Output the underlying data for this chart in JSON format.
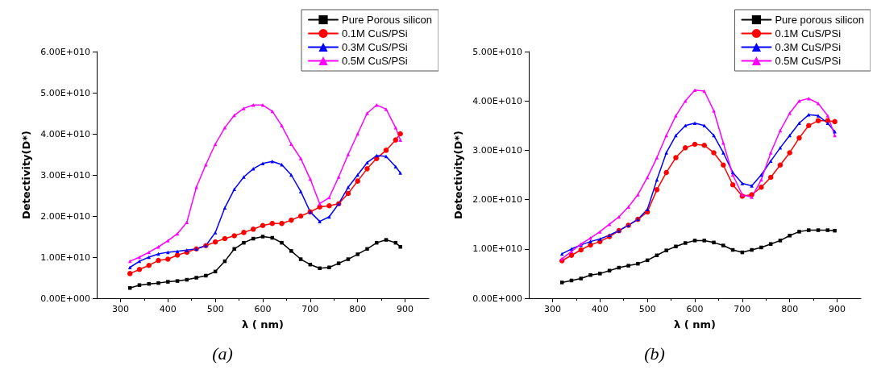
{
  "chart_data": [
    {
      "type": "line",
      "xlabel": "λ ( nm)",
      "ylabel": "Detectivity(D*)",
      "annotations": [
        "(a)"
      ],
      "legend": "top right",
      "grid": false,
      "line_style": "solid",
      "xlim": [
        250,
        950
      ],
      "xticks": [
        300,
        400,
        500,
        600,
        700,
        800,
        900
      ],
      "ylim": [
        0,
        60000000000.0
      ],
      "yticks": [
        {
          "value": 0,
          "label": "0.00E+000"
        },
        {
          "value": 10000000000.0,
          "label": "1.00E+010"
        },
        {
          "value": 20000000000.0,
          "label": "2.00E+010"
        },
        {
          "value": 30000000000.0,
          "label": "3.00E+010"
        },
        {
          "value": 40000000000.0,
          "label": "4.00E+010"
        },
        {
          "value": 50000000000.0,
          "label": "5.00E+010"
        },
        {
          "value": 60000000000.0,
          "label": "6.00E+010"
        }
      ],
      "x": [
        320,
        340,
        360,
        380,
        400,
        420,
        440,
        460,
        480,
        500,
        520,
        540,
        560,
        580,
        600,
        620,
        640,
        660,
        680,
        700,
        720,
        740,
        760,
        780,
        800,
        820,
        840,
        860,
        880,
        890
      ],
      "series": [
        {
          "name": "Pure Porous silicon",
          "color": "#000000",
          "marker": "square",
          "values": [
            2500000000.0,
            3200000000.0,
            3500000000.0,
            3700000000.0,
            4000000000.0,
            4200000000.0,
            4500000000.0,
            5000000000.0,
            5500000000.0,
            6500000000.0,
            9000000000.0,
            12000000000.0,
            13500000000.0,
            14500000000.0,
            15000000000.0,
            14700000000.0,
            13500000000.0,
            11500000000.0,
            9500000000.0,
            8200000000.0,
            7300000000.0,
            7500000000.0,
            8500000000.0,
            9500000000.0,
            10700000000.0,
            12000000000.0,
            13500000000.0,
            14200000000.0,
            13500000000.0,
            12500000000.0
          ]
        },
        {
          "name": "0.1M CuS/PSi",
          "color": "#ff0000",
          "marker": "circle",
          "values": [
            6000000000.0,
            7000000000.0,
            8000000000.0,
            9200000000.0,
            9500000000.0,
            10500000000.0,
            11200000000.0,
            12000000000.0,
            12800000000.0,
            13700000000.0,
            14500000000.0,
            15200000000.0,
            16000000000.0,
            16800000000.0,
            17700000000.0,
            18200000000.0,
            18200000000.0,
            19000000000.0,
            20000000000.0,
            21000000000.0,
            22200000000.0,
            22500000000.0,
            23000000000.0,
            25500000000.0,
            28500000000.0,
            31500000000.0,
            34000000000.0,
            36000000000.0,
            38500000000.0,
            40000000000.0
          ]
        },
        {
          "name": "0.3M CuS/PSi",
          "color": "#0000ff",
          "marker": "triangle",
          "values": [
            7500000000.0,
            9000000000.0,
            10000000000.0,
            10800000000.0,
            11200000000.0,
            11400000000.0,
            11700000000.0,
            12000000000.0,
            12800000000.0,
            16000000000.0,
            22000000000.0,
            26500000000.0,
            29500000000.0,
            31500000000.0,
            32800000000.0,
            33300000000.0,
            32500000000.0,
            30000000000.0,
            26000000000.0,
            21000000000.0,
            18700000000.0,
            19800000000.0,
            23000000000.0,
            27000000000.0,
            30000000000.0,
            33000000000.0,
            34700000000.0,
            34500000000.0,
            32000000000.0,
            30500000000.0
          ]
        },
        {
          "name": "0.5M CuS/PSi",
          "color": "#ff00ff",
          "marker": "triangle",
          "values": [
            9000000000.0,
            10000000000.0,
            11200000000.0,
            12500000000.0,
            14000000000.0,
            15700000000.0,
            18500000000.0,
            27000000000.0,
            32500000000.0,
            37500000000.0,
            41500000000.0,
            44500000000.0,
            46200000000.0,
            47000000000.0,
            47000000000.0,
            45500000000.0,
            42000000000.0,
            37500000000.0,
            34000000000.0,
            29000000000.0,
            23000000000.0,
            24500000000.0,
            29500000000.0,
            35000000000.0,
            40000000000.0,
            45000000000.0,
            47000000000.0,
            46000000000.0,
            41500000000.0,
            38500000000.0
          ]
        }
      ]
    },
    {
      "type": "line",
      "xlabel": "λ ( nm)",
      "ylabel": "Detectivity(D*)",
      "annotations": [
        "(b)"
      ],
      "legend": "top right",
      "grid": false,
      "line_style": "solid",
      "xlim": [
        250,
        950
      ],
      "xticks": [
        300,
        400,
        500,
        600,
        700,
        800,
        900
      ],
      "ylim": [
        0,
        50000000000.0
      ],
      "yticks": [
        {
          "value": 0,
          "label": "0.00E+000"
        },
        {
          "value": 10000000000.0,
          "label": "1.00E+010"
        },
        {
          "value": 20000000000.0,
          "label": "2.00E+010"
        },
        {
          "value": 30000000000.0,
          "label": "3.00E+010"
        },
        {
          "value": 40000000000.0,
          "label": "4.00E+010"
        },
        {
          "value": 50000000000.0,
          "label": "5.00E+010"
        }
      ],
      "x": [
        320,
        340,
        360,
        380,
        400,
        420,
        440,
        460,
        480,
        500,
        520,
        540,
        560,
        580,
        600,
        620,
        640,
        660,
        680,
        700,
        720,
        740,
        760,
        780,
        800,
        820,
        840,
        860,
        880,
        895
      ],
      "series": [
        {
          "name": "Pure porous silicon",
          "color": "#000000",
          "marker": "square",
          "values": [
            3200000000.0,
            3600000000.0,
            4000000000.0,
            4700000000.0,
            5000000000.0,
            5600000000.0,
            6200000000.0,
            6600000000.0,
            7000000000.0,
            7700000000.0,
            8700000000.0,
            9700000000.0,
            10500000000.0,
            11200000000.0,
            11700000000.0,
            11700000000.0,
            11300000000.0,
            10700000000.0,
            9800000000.0,
            9300000000.0,
            9800000000.0,
            10300000000.0,
            11000000000.0,
            11700000000.0,
            12700000000.0,
            13500000000.0,
            13800000000.0,
            13800000000.0,
            13800000000.0,
            13700000000.0
          ]
        },
        {
          "name": "0.1M CuS/PSi",
          "color": "#ff0000",
          "marker": "circle",
          "values": [
            7600000000.0,
            8700000000.0,
            9800000000.0,
            10800000000.0,
            11500000000.0,
            12500000000.0,
            13700000000.0,
            14800000000.0,
            16000000000.0,
            17500000000.0,
            22000000000.0,
            25500000000.0,
            28500000000.0,
            30500000000.0,
            31200000000.0,
            31000000000.0,
            29500000000.0,
            27000000000.0,
            23000000000.0,
            20700000000.0,
            21000000000.0,
            22500000000.0,
            24500000000.0,
            27000000000.0,
            29500000000.0,
            32500000000.0,
            35000000000.0,
            36000000000.0,
            36000000000.0,
            35800000000.0
          ]
        },
        {
          "name": "0.3M CuS/PSi",
          "color": "#0000ff",
          "marker": "triangle",
          "values": [
            9000000000.0,
            10000000000.0,
            10800000000.0,
            11500000000.0,
            12000000000.0,
            12800000000.0,
            13700000000.0,
            14800000000.0,
            16000000000.0,
            18000000000.0,
            24000000000.0,
            29500000000.0,
            33000000000.0,
            35000000000.0,
            35500000000.0,
            35000000000.0,
            33000000000.0,
            29500000000.0,
            25500000000.0,
            23300000000.0,
            22800000000.0,
            25000000000.0,
            27800000000.0,
            30500000000.0,
            33000000000.0,
            35500000000.0,
            37200000000.0,
            37000000000.0,
            35500000000.0,
            33800000000.0
          ]
        },
        {
          "name": "0.5M CuS/PSi",
          "color": "#ff00ff",
          "marker": "triangle",
          "values": [
            8000000000.0,
            9500000000.0,
            11000000000.0,
            12200000000.0,
            13500000000.0,
            15000000000.0,
            16500000000.0,
            18500000000.0,
            21000000000.0,
            24500000000.0,
            28500000000.0,
            33000000000.0,
            37000000000.0,
            40000000000.0,
            42200000000.0,
            42000000000.0,
            38000000000.0,
            31500000000.0,
            25000000000.0,
            21000000000.0,
            20500000000.0,
            24000000000.0,
            29500000000.0,
            34000000000.0,
            37500000000.0,
            40000000000.0,
            40500000000.0,
            39500000000.0,
            37000000000.0,
            33000000000.0
          ]
        }
      ]
    }
  ]
}
